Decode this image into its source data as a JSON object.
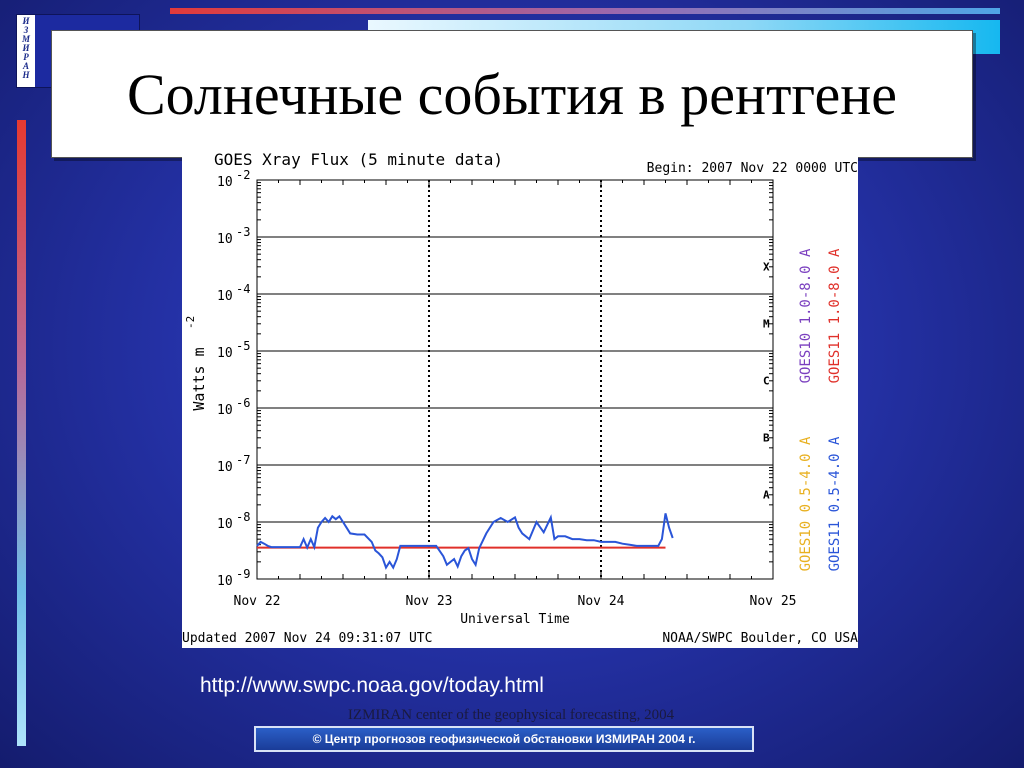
{
  "logo": {
    "letters": [
      "И",
      "З",
      "М",
      "И",
      "Р",
      "А",
      "Н"
    ]
  },
  "slide": {
    "title": "Солнечные события в рентгене",
    "url": "http://www.swpc.noaa.gov/today.html",
    "footer_bar": "© Центр прогнозов геофизической обстановки ИЗМИРАН  2004 г.",
    "footer_note": "IZMIRAN center of the geophysical forecasting, 2004"
  },
  "colors": {
    "goes10_long": "#7a3fbf",
    "goes11_long": "#e0302a",
    "goes10_short": "#e8b020",
    "goes11_short": "#2a55d8"
  },
  "chart_data": {
    "type": "line",
    "title": "GOES Xray Flux (5 minute data)",
    "begin_label": "Begin:  2007 Nov 22 0000 UTC",
    "xlabel": "Universal Time",
    "ylabel": "Watts m",
    "ylabel_sup": "-2",
    "x_ticks": [
      "Nov 22",
      "Nov 23",
      "Nov 24",
      "Nov 25"
    ],
    "y_ticks": [
      {
        "base": "10",
        "exp": "-2"
      },
      {
        "base": "10",
        "exp": "-3"
      },
      {
        "base": "10",
        "exp": "-4"
      },
      {
        "base": "10",
        "exp": "-5"
      },
      {
        "base": "10",
        "exp": "-6"
      },
      {
        "base": "10",
        "exp": "-7"
      },
      {
        "base": "10",
        "exp": "-8"
      },
      {
        "base": "10",
        "exp": "-9"
      }
    ],
    "y_scale": "log",
    "ylim": [
      1e-09,
      0.01
    ],
    "xlim_hours": [
      0,
      72
    ],
    "flare_classes": [
      {
        "label": "X",
        "exp": -3.5
      },
      {
        "label": "M",
        "exp": -4.5
      },
      {
        "label": "C",
        "exp": -5.5
      },
      {
        "label": "B",
        "exp": -6.5
      },
      {
        "label": "A",
        "exp": -7.5
      }
    ],
    "legend": [
      {
        "name": "GOES10 1.0-8.0 A",
        "color": "#7a3fbf"
      },
      {
        "name": "GOES11 1.0-8.0 A",
        "color": "#e0302a"
      },
      {
        "name": "GOES10 0.5-4.0 A",
        "color": "#e8b020"
      },
      {
        "name": "GOES11 0.5-4.0 A",
        "color": "#2a55d8"
      }
    ],
    "updated_label": "Updated 2007 Nov 24 09:31:07 UTC",
    "source_label": "NOAA/SWPC Boulder, CO USA",
    "series": [
      {
        "name": "GOES11 1.0-8.0 A",
        "color": "#e0302a",
        "x_hours": [
          0,
          57
        ],
        "log10_values": [
          -8.45,
          -8.45
        ]
      },
      {
        "name": "GOES11 0.5-4.0 A",
        "color": "#2a55d8",
        "x_hours": [
          0,
          0.5,
          1,
          1.5,
          2,
          3,
          4,
          5,
          6,
          6.5,
          7,
          7.5,
          8,
          8.5,
          9,
          9.5,
          10,
          10.5,
          11,
          11.5,
          12,
          12.5,
          13,
          14,
          15,
          16,
          16.5,
          17,
          17.5,
          18,
          18.5,
          19,
          19.5,
          20,
          21,
          22,
          22.5,
          23,
          24,
          25,
          26,
          26.5,
          27,
          27.5,
          28,
          28.5,
          29,
          29.5,
          30,
          30.5,
          31,
          32,
          33,
          34,
          35,
          36,
          36.5,
          37,
          38,
          39,
          40,
          41,
          41.5,
          42,
          43,
          44,
          45,
          46,
          47,
          48,
          49,
          50,
          51,
          52,
          53,
          54,
          55,
          56,
          56.5,
          57,
          57.5,
          58
        ],
        "log10_values": [
          -8.42,
          -8.35,
          -8.38,
          -8.42,
          -8.44,
          -8.44,
          -8.44,
          -8.44,
          -8.44,
          -8.3,
          -8.45,
          -8.3,
          -8.44,
          -8.1,
          -8.0,
          -7.93,
          -8.0,
          -7.9,
          -7.95,
          -7.9,
          -8.0,
          -8.1,
          -8.2,
          -8.22,
          -8.22,
          -8.35,
          -8.5,
          -8.55,
          -8.62,
          -8.8,
          -8.7,
          -8.8,
          -8.65,
          -8.42,
          -8.42,
          -8.42,
          -8.42,
          -8.42,
          -8.42,
          -8.42,
          -8.6,
          -8.75,
          -8.7,
          -8.65,
          -8.78,
          -8.6,
          -8.5,
          -8.46,
          -8.65,
          -8.75,
          -8.46,
          -8.2,
          -8.0,
          -7.93,
          -8.0,
          -7.92,
          -8.1,
          -8.2,
          -8.3,
          -8.0,
          -8.18,
          -7.92,
          -8.3,
          -8.25,
          -8.25,
          -8.3,
          -8.3,
          -8.32,
          -8.32,
          -8.35,
          -8.35,
          -8.35,
          -8.38,
          -8.4,
          -8.42,
          -8.42,
          -8.42,
          -8.42,
          -8.3,
          -7.85,
          -8.1,
          -8.28
        ]
      }
    ]
  }
}
